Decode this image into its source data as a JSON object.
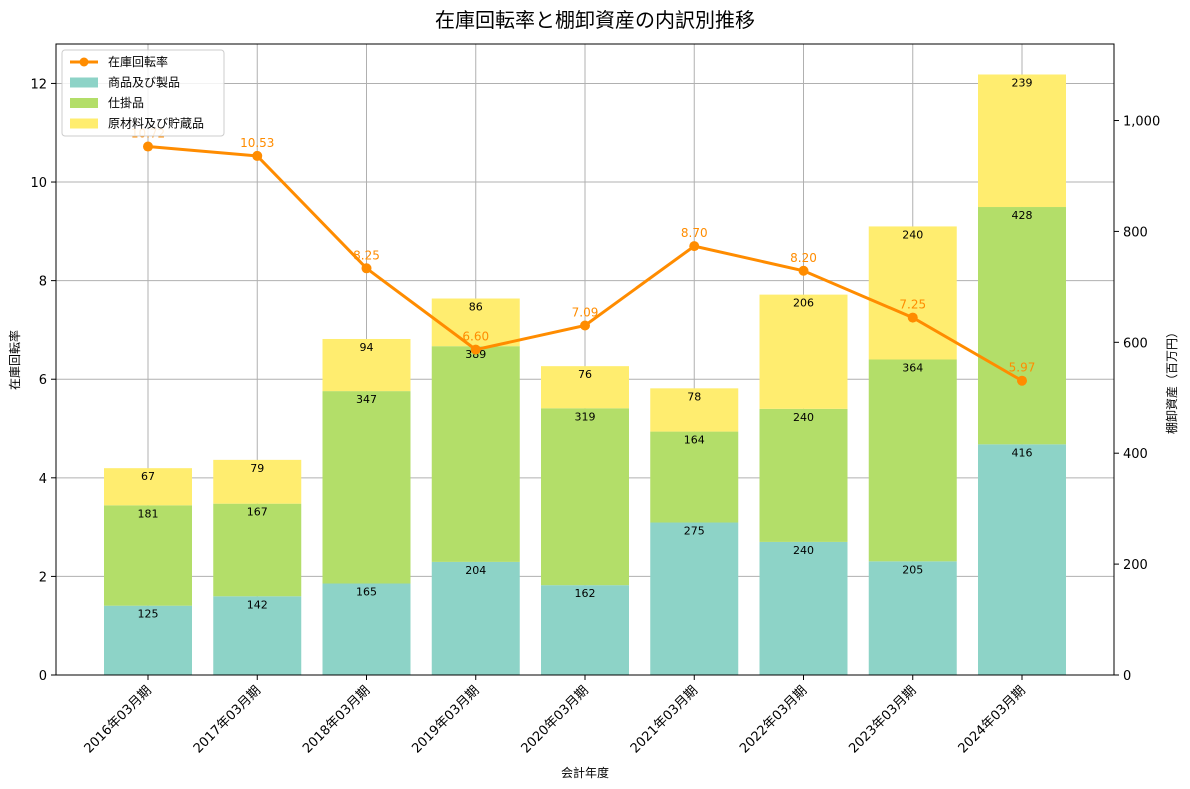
{
  "chart_data": {
    "type": "bar",
    "title": "在庫回転率と棚卸資産の内訳別推移",
    "xlabel": "会計年度",
    "ylabel_left": "在庫回転率",
    "ylabel_right": "棚卸資産（百万円）",
    "categories": [
      "2016年03月期",
      "2017年03月期",
      "2018年03月期",
      "2019年03月期",
      "2020年03月期",
      "2021年03月期",
      "2022年03月期",
      "2023年03月期",
      "2024年03月期"
    ],
    "y_left": {
      "min": 0,
      "max": 12.8,
      "ticks": [
        "0",
        "2",
        "4",
        "6",
        "8",
        "10",
        "12"
      ]
    },
    "y_right": {
      "min": 0,
      "max": 1138,
      "ticks": [
        "0",
        "200",
        "400",
        "600",
        "800",
        "1,000"
      ]
    },
    "grid": true,
    "legend_position": "top-left",
    "stacked_series": [
      {
        "name": "商品及び製品",
        "color": "#8dd3c7",
        "values": [
          125,
          142,
          165,
          204,
          162,
          275,
          240,
          205,
          416
        ]
      },
      {
        "name": "仕掛品",
        "color": "#b3de69",
        "values": [
          181,
          167,
          347,
          389,
          319,
          164,
          240,
          364,
          428
        ]
      },
      {
        "name": "原材料及び貯蔵品",
        "color": "#ffed6f",
        "values": [
          67,
          79,
          94,
          86,
          76,
          78,
          206,
          240,
          239
        ]
      }
    ],
    "line_series": {
      "name": "在庫回転率",
      "color": "#ff8c00",
      "values": [
        10.72,
        10.53,
        8.25,
        6.6,
        7.09,
        8.7,
        8.2,
        7.25,
        5.97
      ],
      "labels": [
        "10.72",
        "10.53",
        "8.25",
        "6.60",
        "7.09",
        "8.70",
        "8.20",
        "7.25",
        "5.97"
      ]
    }
  }
}
